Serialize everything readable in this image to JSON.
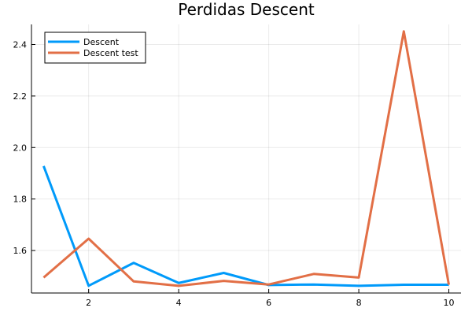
{
  "chart_data": {
    "type": "line",
    "title": "Perdidas Descent",
    "xlabel": "",
    "ylabel": "",
    "x": [
      1,
      2,
      3,
      4,
      5,
      6,
      7,
      8,
      9,
      10
    ],
    "xlim": [
      0.73,
      10.27
    ],
    "ylim": [
      1.435,
      2.478
    ],
    "x_ticks": [
      2,
      4,
      6,
      8,
      10
    ],
    "y_ticks": [
      1.6,
      1.8,
      2.0,
      2.2,
      2.4
    ],
    "x_tick_labels": [
      "2",
      "4",
      "6",
      "8",
      "10"
    ],
    "y_tick_labels": [
      "1.6",
      "1.8",
      "2.0",
      "2.2",
      "2.4"
    ],
    "grid": true,
    "legend_position": "top-left",
    "series": [
      {
        "name": "Descent",
        "color": "#009AFA",
        "values": [
          1.928,
          1.463,
          1.552,
          1.474,
          1.513,
          1.466,
          1.468,
          1.463,
          1.467,
          1.467
        ]
      },
      {
        "name": "Descent test",
        "color": "#E26F46",
        "values": [
          1.495,
          1.646,
          1.48,
          1.463,
          1.482,
          1.468,
          1.509,
          1.495,
          2.451,
          1.467
        ]
      }
    ]
  }
}
